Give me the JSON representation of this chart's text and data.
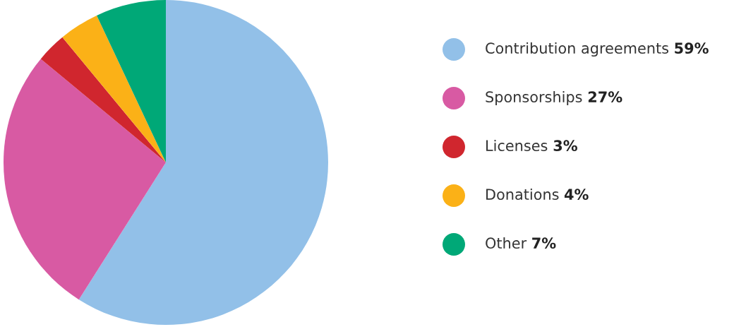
{
  "chart_data": {
    "type": "pie",
    "categories": [
      "Contribution agreements",
      "Sponsorships",
      "Licenses",
      "Donations",
      "Other"
    ],
    "values": [
      59,
      27,
      3,
      4,
      7
    ],
    "value_labels": [
      "59%",
      "27%",
      "3%",
      "4%",
      "7%"
    ],
    "colors": [
      "#92c0e8",
      "#d85aa3",
      "#d0262e",
      "#fbb117",
      "#00a877"
    ],
    "legend": "right"
  }
}
